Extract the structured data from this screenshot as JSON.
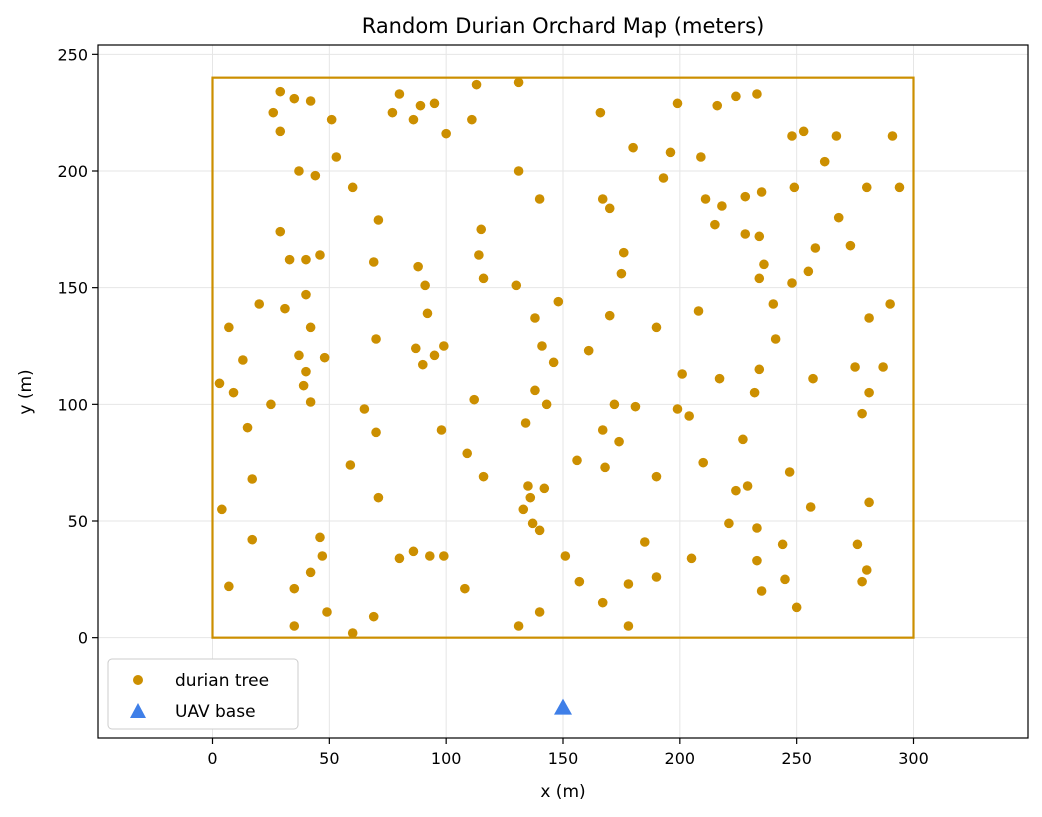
{
  "chart_data": {
    "type": "scatter",
    "title": "Random Durian Orchard Map (meters)",
    "xlabel": "x (m)",
    "ylabel": "y (m)",
    "xlim": [
      -49,
      349
    ],
    "ylim": [
      -43,
      254
    ],
    "xticks": [
      0,
      50,
      100,
      150,
      200,
      250,
      300
    ],
    "yticks": [
      0,
      50,
      100,
      150,
      200,
      250
    ],
    "grid": true,
    "legend_position": "lower-left",
    "boundary": {
      "label": "",
      "x": [
        0,
        300
      ],
      "y": [
        0,
        240
      ],
      "color": "#cc8f00"
    },
    "series": [
      {
        "name": "durian tree",
        "marker": "circle",
        "color": "#cc8f00",
        "points": [
          [
            29,
            234
          ],
          [
            35,
            231
          ],
          [
            42,
            230
          ],
          [
            26,
            225
          ],
          [
            29,
            217
          ],
          [
            51,
            222
          ],
          [
            80,
            233
          ],
          [
            77,
            225
          ],
          [
            86,
            222
          ],
          [
            89,
            228
          ],
          [
            95,
            229
          ],
          [
            100,
            216
          ],
          [
            113,
            237
          ],
          [
            111,
            222
          ],
          [
            131,
            238
          ],
          [
            166,
            225
          ],
          [
            180,
            210
          ],
          [
            196,
            208
          ],
          [
            199,
            229
          ],
          [
            216,
            228
          ],
          [
            224,
            232
          ],
          [
            233,
            233
          ],
          [
            248,
            215
          ],
          [
            253,
            217
          ],
          [
            267,
            215
          ],
          [
            291,
            215
          ],
          [
            262,
            204
          ],
          [
            37,
            200
          ],
          [
            44,
            198
          ],
          [
            53,
            206
          ],
          [
            60,
            193
          ],
          [
            71,
            179
          ],
          [
            29,
            174
          ],
          [
            131,
            200
          ],
          [
            140,
            188
          ],
          [
            167,
            188
          ],
          [
            170,
            184
          ],
          [
            193,
            197
          ],
          [
            209,
            206
          ],
          [
            211,
            188
          ],
          [
            218,
            185
          ],
          [
            228,
            189
          ],
          [
            235,
            191
          ],
          [
            249,
            193
          ],
          [
            280,
            193
          ],
          [
            294,
            193
          ],
          [
            268,
            180
          ],
          [
            215,
            177
          ],
          [
            228,
            173
          ],
          [
            234,
            172
          ],
          [
            273,
            168
          ],
          [
            258,
            167
          ],
          [
            236,
            160
          ],
          [
            255,
            157
          ],
          [
            234,
            154
          ],
          [
            248,
            152
          ],
          [
            33,
            162
          ],
          [
            40,
            162
          ],
          [
            46,
            164
          ],
          [
            69,
            161
          ],
          [
            88,
            159
          ],
          [
            114,
            164
          ],
          [
            115,
            175
          ],
          [
            116,
            154
          ],
          [
            176,
            165
          ],
          [
            175,
            156
          ],
          [
            40,
            147
          ],
          [
            91,
            151
          ],
          [
            130,
            151
          ],
          [
            20,
            143
          ],
          [
            31,
            141
          ],
          [
            92,
            139
          ],
          [
            148,
            144
          ],
          [
            7,
            133
          ],
          [
            42,
            133
          ],
          [
            70,
            128
          ],
          [
            99,
            125
          ],
          [
            87,
            124
          ],
          [
            95,
            121
          ],
          [
            90,
            117
          ],
          [
            138,
            137
          ],
          [
            141,
            125
          ],
          [
            146,
            118
          ],
          [
            161,
            123
          ],
          [
            170,
            138
          ],
          [
            190,
            133
          ],
          [
            208,
            140
          ],
          [
            240,
            143
          ],
          [
            241,
            128
          ],
          [
            281,
            137
          ],
          [
            290,
            143
          ],
          [
            13,
            119
          ],
          [
            37,
            121
          ],
          [
            48,
            120
          ],
          [
            40,
            114
          ],
          [
            39,
            108
          ],
          [
            3,
            109
          ],
          [
            9,
            105
          ],
          [
            25,
            100
          ],
          [
            42,
            101
          ],
          [
            65,
            98
          ],
          [
            70,
            88
          ],
          [
            15,
            90
          ],
          [
            98,
            89
          ],
          [
            112,
            102
          ],
          [
            138,
            106
          ],
          [
            143,
            100
          ],
          [
            134,
            92
          ],
          [
            109,
            79
          ],
          [
            116,
            69
          ],
          [
            172,
            100
          ],
          [
            181,
            99
          ],
          [
            174,
            84
          ],
          [
            167,
            89
          ],
          [
            156,
            76
          ],
          [
            168,
            73
          ],
          [
            201,
            113
          ],
          [
            199,
            98
          ],
          [
            204,
            95
          ],
          [
            217,
            111
          ],
          [
            234,
            115
          ],
          [
            232,
            105
          ],
          [
            227,
            85
          ],
          [
            210,
            75
          ],
          [
            257,
            111
          ],
          [
            275,
            116
          ],
          [
            281,
            105
          ],
          [
            287,
            116
          ],
          [
            278,
            96
          ],
          [
            247,
            71
          ],
          [
            59,
            74
          ],
          [
            17,
            68
          ],
          [
            4,
            55
          ],
          [
            71,
            60
          ],
          [
            17,
            42
          ],
          [
            46,
            43
          ],
          [
            47,
            35
          ],
          [
            42,
            28
          ],
          [
            35,
            21
          ],
          [
            7,
            22
          ],
          [
            49,
            11
          ],
          [
            35,
            5
          ],
          [
            69,
            9
          ],
          [
            60,
            2
          ],
          [
            80,
            34
          ],
          [
            86,
            37
          ],
          [
            93,
            35
          ],
          [
            99,
            35
          ],
          [
            108,
            21
          ],
          [
            135,
            65
          ],
          [
            136,
            60
          ],
          [
            142,
            64
          ],
          [
            133,
            55
          ],
          [
            137,
            49
          ],
          [
            140,
            46
          ],
          [
            151,
            35
          ],
          [
            157,
            24
          ],
          [
            131,
            5
          ],
          [
            140,
            11
          ],
          [
            167,
            15
          ],
          [
            178,
            23
          ],
          [
            178,
            5
          ],
          [
            185,
            41
          ],
          [
            190,
            69
          ],
          [
            190,
            26
          ],
          [
            205,
            34
          ],
          [
            221,
            49
          ],
          [
            224,
            63
          ],
          [
            229,
            65
          ],
          [
            233,
            47
          ],
          [
            233,
            33
          ],
          [
            235,
            20
          ],
          [
            244,
            40
          ],
          [
            245,
            25
          ],
          [
            250,
            13
          ],
          [
            256,
            56
          ],
          [
            276,
            40
          ],
          [
            278,
            24
          ],
          [
            280,
            29
          ],
          [
            281,
            58
          ]
        ]
      },
      {
        "name": "UAV base",
        "marker": "triangle",
        "color": "#3f7fe8",
        "points": [
          [
            150,
            -30
          ]
        ]
      }
    ]
  }
}
